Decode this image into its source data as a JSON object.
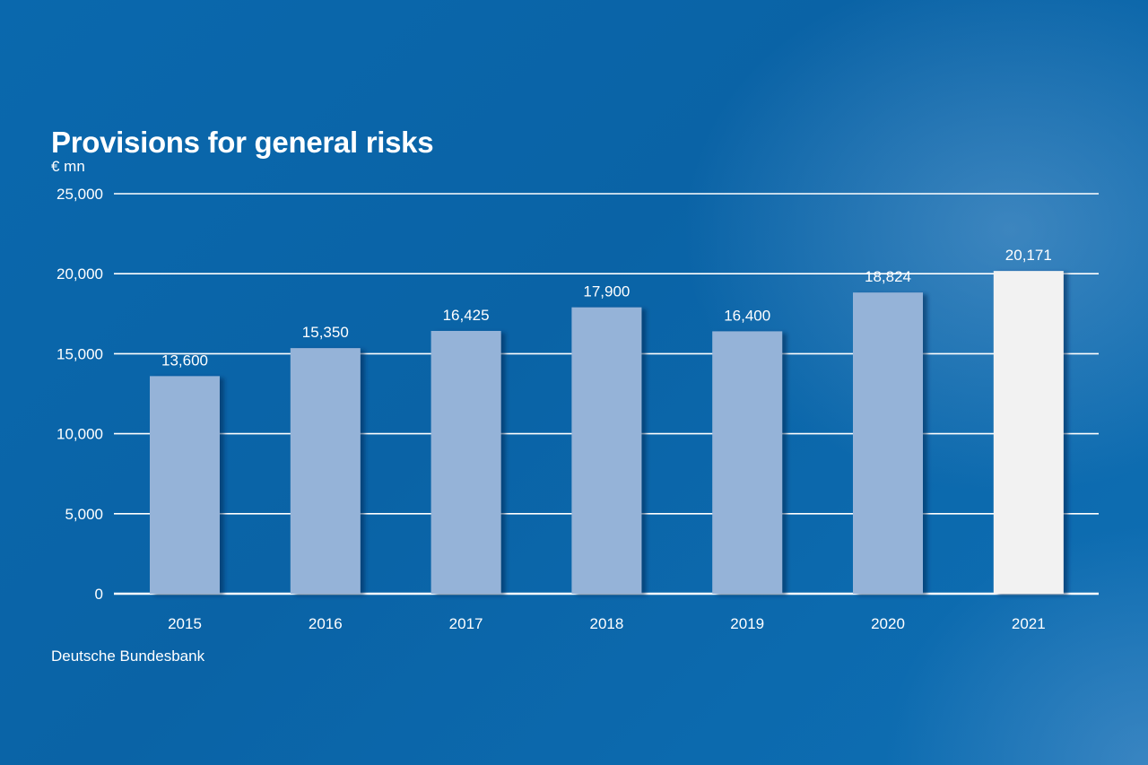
{
  "chart_data": {
    "type": "bar",
    "title": "Provisions for general risks",
    "ylabel": "€ mn",
    "xlabel": "",
    "source": "Deutsche Bundesbank",
    "categories": [
      "2015",
      "2016",
      "2017",
      "2018",
      "2019",
      "2020",
      "2021"
    ],
    "values": [
      13600,
      15350,
      16425,
      17900,
      16400,
      18824,
      20171
    ],
    "value_labels": [
      "13,600",
      "15,350",
      "16,425",
      "17,900",
      "16,400",
      "18,824",
      "20,171"
    ],
    "ylim": [
      0,
      25000
    ],
    "yticks": [
      0,
      5000,
      10000,
      15000,
      20000,
      25000
    ],
    "ytick_labels": [
      "0",
      "5,000",
      "10,000",
      "15,000",
      "20,000",
      "25,000"
    ],
    "grid": true,
    "colors": {
      "bar": "#95b3d8",
      "highlight_bar": "#f2f2f2",
      "gridline": "#ffffff"
    },
    "highlight_category": "2021"
  }
}
